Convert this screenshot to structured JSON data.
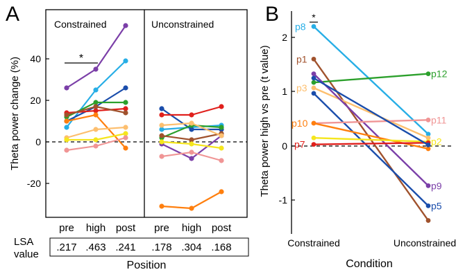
{
  "panel_a": {
    "letter": "A",
    "ylabel": "Theta power change (%)",
    "xlabel": "Position",
    "ytick_labels": [
      "-20",
      "0",
      "20",
      "40"
    ],
    "groups": [
      {
        "label": "Constrained",
        "ticks": [
          "pre",
          "high",
          "post"
        ],
        "lsa": [
          ".217",
          ".463",
          ".241"
        ]
      },
      {
        "label": "Unconstrained",
        "ticks": [
          "pre",
          "high",
          "post"
        ],
        "lsa": [
          ".178",
          ".304",
          ".168"
        ]
      }
    ],
    "lsa_label_1": "LSA",
    "lsa_label_2": "value",
    "significance": "*"
  },
  "panel_b": {
    "letter": "B",
    "ylabel": "Theta power high vs pre (t value)",
    "xlabel": "Condition",
    "ytick_labels": [
      "-1",
      "0",
      "1",
      "2"
    ],
    "categories": [
      "Constrained",
      "Unconstrained"
    ],
    "significance": "*"
  },
  "chart_data": [
    {
      "type": "line",
      "panel": "A",
      "ylabel": "Theta power change (%)",
      "xlabel": "Position",
      "ylim": [
        -38,
        62
      ],
      "groups": [
        "Constrained",
        "Unconstrained"
      ],
      "x": [
        "pre",
        "high",
        "post"
      ],
      "series": [
        {
          "color": "#7b3fa8",
          "constrained": [
            26,
            35,
            56
          ],
          "unconstrained": [
            -1,
            -8,
            3
          ]
        },
        {
          "color": "#27aee6",
          "constrained": [
            7,
            25,
            39
          ],
          "unconstrained": [
            6,
            7,
            8
          ]
        },
        {
          "color": "#1a4dab",
          "constrained": [
            10,
            17,
            26
          ],
          "unconstrained": [
            16,
            6,
            6
          ]
        },
        {
          "color": "#2ca02c",
          "constrained": [
            12,
            19,
            19
          ],
          "unconstrained": [
            2,
            8,
            7
          ]
        },
        {
          "color": "#e0201c",
          "constrained": [
            14,
            15,
            16
          ],
          "unconstrained": [
            13,
            13,
            17
          ]
        },
        {
          "color": "#a0522d",
          "constrained": [
            13,
            17,
            14
          ],
          "unconstrained": [
            3,
            1,
            4
          ]
        },
        {
          "color": "#ff7f0e",
          "constrained": [
            10,
            13,
            -3
          ],
          "unconstrained": [
            -31,
            -32,
            -24
          ]
        },
        {
          "color": "#fdbf6f",
          "constrained": [
            2,
            6,
            7
          ],
          "unconstrained": [
            8,
            9,
            3
          ]
        },
        {
          "color": "#f5e61e",
          "constrained": [
            1,
            1,
            4
          ],
          "unconstrained": [
            0,
            -1,
            -3
          ]
        },
        {
          "color": "#f09595",
          "constrained": [
            -4,
            -2,
            2
          ],
          "unconstrained": [
            -7,
            -5,
            -9
          ]
        }
      ],
      "significance": [
        {
          "group": "Constrained",
          "between": [
            "pre",
            "high"
          ],
          "label": "*"
        }
      ],
      "lsa_value": {
        "Constrained": [
          0.217,
          0.463,
          0.241
        ],
        "Unconstrained": [
          0.178,
          0.304,
          0.168
        ]
      },
      "reference_line": 0
    },
    {
      "type": "line",
      "panel": "B",
      "ylabel": "Theta power high vs pre (t value)",
      "xlabel": "Condition",
      "ylim": [
        -1.6,
        2.45
      ],
      "categories": [
        "Constrained",
        "Unconstrained"
      ],
      "series": [
        {
          "name": "p8",
          "color": "#27aee6",
          "values": [
            2.2,
            0.22
          ]
        },
        {
          "name": "p1",
          "color": "#a0522d",
          "values": [
            1.6,
            -1.37
          ]
        },
        {
          "name": "p12",
          "color": "#2ca02c",
          "values": [
            1.17,
            1.33
          ]
        },
        {
          "name": "p3",
          "color": "#fdbf6f",
          "values": [
            1.07,
            0.15
          ]
        },
        {
          "name": "p9",
          "color": "#7b3fa8",
          "values": [
            1.33,
            -0.73
          ]
        },
        {
          "name": "p5",
          "color": "#1a4dab",
          "values": [
            0.97,
            -1.1
          ]
        },
        {
          "name": "p11",
          "color": "#f09595",
          "values": [
            0.42,
            0.48
          ]
        },
        {
          "name": "p10",
          "color": "#ff7f0e",
          "values": [
            0.42,
            -0.05
          ]
        },
        {
          "name": "p2",
          "color": "#f5e61e",
          "values": [
            0.15,
            0.08
          ]
        },
        {
          "name": "p7",
          "color": "#e0201c",
          "values": [
            0.03,
            0.06
          ]
        },
        {
          "name": "",
          "color": "#1a4dab",
          "values": [
            1.25,
            0.02
          ]
        }
      ],
      "significance": [
        {
          "category": "Constrained",
          "label": "*"
        }
      ],
      "reference_line": 0
    }
  ]
}
